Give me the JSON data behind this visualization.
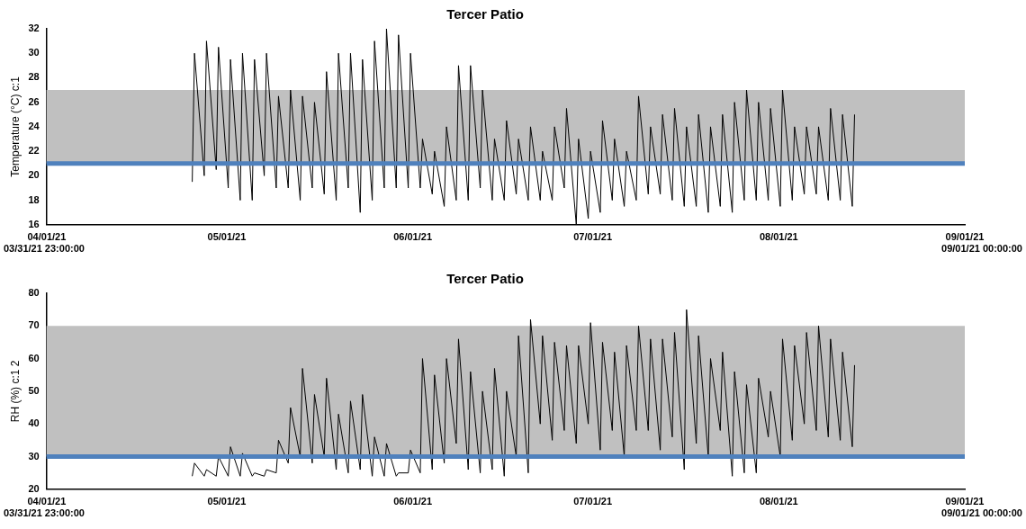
{
  "chart_data": [
    {
      "type": "line",
      "title": "Tercer Patio",
      "ylabel": "Temperature (°C) c:1",
      "x": [
        "2021-04-25T06:00",
        "2021-04-25T15:00",
        "2021-04-27T06:00",
        "2021-04-27T15:00",
        "2021-04-29T06:00",
        "2021-04-29T15:00",
        "2021-05-01T06:00",
        "2021-05-01T15:00",
        "2021-05-03T06:00",
        "2021-05-03T15:00",
        "2021-05-05T06:00",
        "2021-05-05T15:00",
        "2021-05-07T06:00",
        "2021-05-07T15:00",
        "2021-05-09T06:00",
        "2021-05-09T15:00",
        "2021-05-11T06:00",
        "2021-05-11T15:00",
        "2021-05-13T06:00",
        "2021-05-13T15:00",
        "2021-05-15T06:00",
        "2021-05-15T15:00",
        "2021-05-17T06:00",
        "2021-05-17T15:00",
        "2021-05-19T06:00",
        "2021-05-19T15:00",
        "2021-05-21T06:00",
        "2021-05-21T15:00",
        "2021-05-23T06:00",
        "2021-05-23T15:00",
        "2021-05-25T06:00",
        "2021-05-25T15:00",
        "2021-05-27T06:00",
        "2021-05-27T15:00",
        "2021-05-29T06:00",
        "2021-05-29T15:00",
        "2021-05-31T06:00",
        "2021-05-31T15:00",
        "2021-06-02T06:00",
        "2021-06-02T15:00",
        "2021-06-04T06:00",
        "2021-06-04T15:00",
        "2021-06-06T06:00",
        "2021-06-06T15:00",
        "2021-06-08T06:00",
        "2021-06-08T15:00",
        "2021-06-10T06:00",
        "2021-06-10T15:00",
        "2021-06-12T06:00",
        "2021-06-12T15:00",
        "2021-06-14T06:00",
        "2021-06-14T15:00",
        "2021-06-16T06:00",
        "2021-06-16T15:00",
        "2021-06-18T06:00",
        "2021-06-18T15:00",
        "2021-06-20T06:00",
        "2021-06-20T15:00",
        "2021-06-22T06:00",
        "2021-06-22T15:00",
        "2021-06-24T06:00",
        "2021-06-24T15:00",
        "2021-06-26T06:00",
        "2021-06-26T15:00",
        "2021-06-28T06:00",
        "2021-06-28T15:00",
        "2021-06-30T06:00",
        "2021-06-30T15:00",
        "2021-07-02T06:00",
        "2021-07-02T15:00",
        "2021-07-04T06:00",
        "2021-07-04T15:00",
        "2021-07-06T06:00",
        "2021-07-06T15:00",
        "2021-07-08T06:00",
        "2021-07-08T15:00",
        "2021-07-10T06:00",
        "2021-07-10T15:00",
        "2021-07-12T06:00",
        "2021-07-12T15:00",
        "2021-07-14T06:00",
        "2021-07-14T15:00",
        "2021-07-16T06:00",
        "2021-07-16T15:00",
        "2021-07-18T06:00",
        "2021-07-18T15:00",
        "2021-07-20T06:00",
        "2021-07-20T15:00",
        "2021-07-22T06:00",
        "2021-07-22T15:00",
        "2021-07-24T06:00",
        "2021-07-24T15:00",
        "2021-07-26T06:00",
        "2021-07-26T15:00",
        "2021-07-28T06:00",
        "2021-07-28T15:00",
        "2021-07-30T06:00",
        "2021-07-30T15:00",
        "2021-08-01T06:00",
        "2021-08-01T15:00",
        "2021-08-03T06:00",
        "2021-08-03T15:00",
        "2021-08-05T06:00",
        "2021-08-05T15:00",
        "2021-08-07T06:00",
        "2021-08-07T15:00",
        "2021-08-09T06:00",
        "2021-08-09T15:00",
        "2021-08-11T06:00",
        "2021-08-11T15:00",
        "2021-08-13T06:00",
        "2021-08-13T15:00"
      ],
      "series": [
        {
          "color": "#000000",
          "values": [
            19.5,
            30,
            20,
            31,
            20.5,
            30.5,
            19,
            29.5,
            18,
            30,
            18,
            29.5,
            20,
            30,
            19,
            26.5,
            19,
            27,
            18,
            26.5,
            19,
            26,
            18.5,
            28.5,
            18,
            30,
            19,
            30,
            17,
            29.5,
            18,
            31,
            19,
            32,
            19,
            31.5,
            19,
            30,
            19,
            23,
            18.5,
            22,
            17.5,
            24,
            18,
            29,
            18,
            29,
            19,
            27,
            18,
            23,
            18,
            24.5,
            18.5,
            23,
            18,
            24,
            18,
            22,
            18,
            24,
            19,
            25.5,
            16,
            23,
            16.5,
            22,
            17,
            24.5,
            18,
            23,
            17.5,
            22,
            18,
            26.5,
            18.5,
            24,
            18.5,
            25,
            18,
            25.5,
            17.5,
            24,
            17.5,
            25,
            17,
            24,
            17.5,
            25,
            17,
            26,
            18,
            27,
            18,
            26,
            18,
            25.5,
            17.5,
            27,
            18,
            24,
            18.5,
            24,
            18.5,
            24,
            18,
            25.5,
            18,
            25,
            17.5,
            25
          ]
        }
      ],
      "xlim": [
        "2021-03-31T23:00",
        "2021-09-01T00:00"
      ],
      "xticks": [
        {
          "value": "2021-04-01",
          "label": "04/01/21"
        },
        {
          "value": "2021-05-01",
          "label": "05/01/21"
        },
        {
          "value": "2021-06-01",
          "label": "06/01/21"
        },
        {
          "value": "2021-07-01",
          "label": "07/01/21"
        },
        {
          "value": "2021-08-01",
          "label": "08/01/21"
        },
        {
          "value": "2021-09-01",
          "label": "09/01/21"
        }
      ],
      "ylim": [
        16,
        32
      ],
      "yticks": [
        16,
        18,
        20,
        22,
        24,
        26,
        28,
        30,
        32
      ],
      "bands": [
        {
          "axis": "y",
          "from": 21,
          "to": 27,
          "color": "#c0c0c0"
        }
      ],
      "ref_lines": [
        {
          "axis": "y",
          "value": 21,
          "color": "#4f81bd"
        }
      ],
      "annotations": [
        "03/31/21 23:00:00",
        "09/01/21 00:00:00"
      ],
      "grid": false,
      "legend": false,
      "marker": "none",
      "line_style": "solid"
    },
    {
      "type": "line",
      "title": "Tercer Patio",
      "ylabel": "RH (%) c:1 2",
      "x": [
        "2021-04-25T06:00",
        "2021-04-25T15:00",
        "2021-04-27T06:00",
        "2021-04-27T15:00",
        "2021-04-29T06:00",
        "2021-04-29T15:00",
        "2021-05-01T06:00",
        "2021-05-01T15:00",
        "2021-05-03T06:00",
        "2021-05-03T15:00",
        "2021-05-05T06:00",
        "2021-05-05T15:00",
        "2021-05-07T06:00",
        "2021-05-07T15:00",
        "2021-05-09T06:00",
        "2021-05-09T15:00",
        "2021-05-11T06:00",
        "2021-05-11T15:00",
        "2021-05-13T06:00",
        "2021-05-13T15:00",
        "2021-05-15T06:00",
        "2021-05-15T15:00",
        "2021-05-17T06:00",
        "2021-05-17T15:00",
        "2021-05-19T06:00",
        "2021-05-19T15:00",
        "2021-05-21T06:00",
        "2021-05-21T15:00",
        "2021-05-23T06:00",
        "2021-05-23T15:00",
        "2021-05-25T06:00",
        "2021-05-25T15:00",
        "2021-05-27T06:00",
        "2021-05-27T15:00",
        "2021-05-29T06:00",
        "2021-05-29T15:00",
        "2021-05-31T06:00",
        "2021-05-31T15:00",
        "2021-06-02T06:00",
        "2021-06-02T15:00",
        "2021-06-04T06:00",
        "2021-06-04T15:00",
        "2021-06-06T06:00",
        "2021-06-06T15:00",
        "2021-06-08T06:00",
        "2021-06-08T15:00",
        "2021-06-10T06:00",
        "2021-06-10T15:00",
        "2021-06-12T06:00",
        "2021-06-12T15:00",
        "2021-06-14T06:00",
        "2021-06-14T15:00",
        "2021-06-16T06:00",
        "2021-06-16T15:00",
        "2021-06-18T06:00",
        "2021-06-18T15:00",
        "2021-06-20T06:00",
        "2021-06-20T15:00",
        "2021-06-22T06:00",
        "2021-06-22T15:00",
        "2021-06-24T06:00",
        "2021-06-24T15:00",
        "2021-06-26T06:00",
        "2021-06-26T15:00",
        "2021-06-28T06:00",
        "2021-06-28T15:00",
        "2021-06-30T06:00",
        "2021-06-30T15:00",
        "2021-07-02T06:00",
        "2021-07-02T15:00",
        "2021-07-04T06:00",
        "2021-07-04T15:00",
        "2021-07-06T06:00",
        "2021-07-06T15:00",
        "2021-07-08T06:00",
        "2021-07-08T15:00",
        "2021-07-10T06:00",
        "2021-07-10T15:00",
        "2021-07-12T06:00",
        "2021-07-12T15:00",
        "2021-07-14T06:00",
        "2021-07-14T15:00",
        "2021-07-16T06:00",
        "2021-07-16T15:00",
        "2021-07-18T06:00",
        "2021-07-18T15:00",
        "2021-07-20T06:00",
        "2021-07-20T15:00",
        "2021-07-22T06:00",
        "2021-07-22T15:00",
        "2021-07-24T06:00",
        "2021-07-24T15:00",
        "2021-07-26T06:00",
        "2021-07-26T15:00",
        "2021-07-28T06:00",
        "2021-07-28T15:00",
        "2021-07-30T06:00",
        "2021-07-30T15:00",
        "2021-08-01T06:00",
        "2021-08-01T15:00",
        "2021-08-03T06:00",
        "2021-08-03T15:00",
        "2021-08-05T06:00",
        "2021-08-05T15:00",
        "2021-08-07T06:00",
        "2021-08-07T15:00",
        "2021-08-09T06:00",
        "2021-08-09T15:00",
        "2021-08-11T06:00",
        "2021-08-11T15:00",
        "2021-08-13T06:00",
        "2021-08-13T15:00"
      ],
      "series": [
        {
          "color": "#000000",
          "values": [
            24,
            28,
            24,
            26,
            24,
            30,
            24,
            33,
            24,
            31,
            24,
            25,
            24,
            26,
            25,
            35,
            28,
            45,
            30,
            57,
            28,
            49,
            30,
            54,
            26,
            43,
            25,
            47,
            26,
            49,
            24,
            36,
            24,
            34,
            24,
            25,
            25,
            32,
            25,
            60,
            26,
            55,
            28,
            60,
            34,
            66,
            26,
            56,
            25,
            50,
            26,
            57,
            24,
            50,
            30,
            67,
            25,
            72,
            40,
            67,
            35,
            65,
            38,
            64,
            34,
            64,
            40,
            71,
            32,
            65,
            38,
            62,
            30,
            64,
            38,
            70,
            38,
            66,
            32,
            66,
            36,
            68,
            26,
            75,
            34,
            67,
            30,
            60,
            38,
            62,
            24,
            56,
            25,
            52,
            25,
            54,
            36,
            50,
            30,
            66,
            35,
            64,
            40,
            68,
            38,
            70,
            36,
            66,
            35,
            62,
            33,
            58
          ]
        }
      ],
      "xlim": [
        "2021-03-31T23:00",
        "2021-09-01T00:00"
      ],
      "xticks": [
        {
          "value": "2021-04-01",
          "label": "04/01/21"
        },
        {
          "value": "2021-05-01",
          "label": "05/01/21"
        },
        {
          "value": "2021-06-01",
          "label": "06/01/21"
        },
        {
          "value": "2021-07-01",
          "label": "07/01/21"
        },
        {
          "value": "2021-08-01",
          "label": "08/01/21"
        },
        {
          "value": "2021-09-01",
          "label": "09/01/21"
        }
      ],
      "ylim": [
        20,
        80
      ],
      "yticks": [
        20,
        30,
        40,
        50,
        60,
        70,
        80
      ],
      "bands": [
        {
          "axis": "y",
          "from": 30,
          "to": 70,
          "color": "#c0c0c0"
        }
      ],
      "ref_lines": [
        {
          "axis": "y",
          "value": 30,
          "color": "#4f81bd"
        }
      ],
      "annotations": [
        "03/31/21 23:00:00",
        "09/01/21 00:00:00"
      ],
      "grid": false,
      "legend": false,
      "marker": "none",
      "line_style": "solid"
    }
  ]
}
